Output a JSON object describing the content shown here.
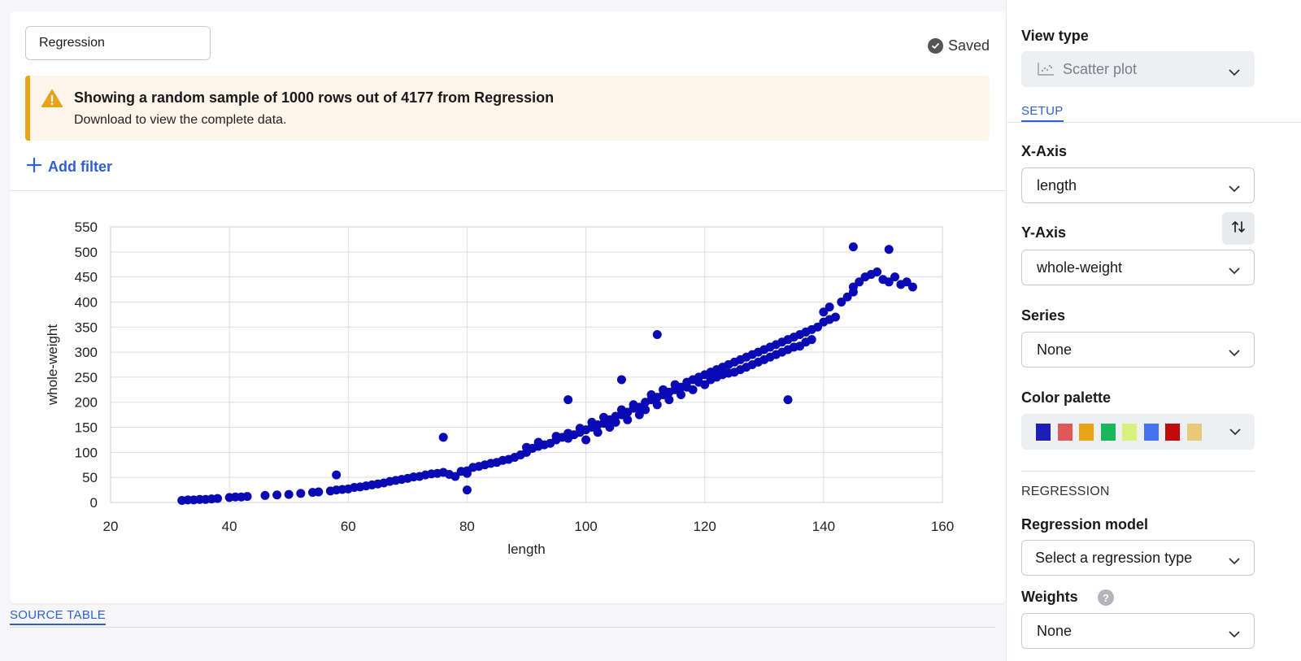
{
  "editor": {
    "name_value": "Regression",
    "saved_label": "Saved",
    "warning_title": "Showing a random sample of 1000 rows out of 4177 from Regression",
    "warning_sub": "Download to view the complete data.",
    "add_filter_label": "Add filter",
    "source_tab_label": "SOURCE TABLE"
  },
  "panel": {
    "view_type_label": "View type",
    "view_type_value": "Scatter plot",
    "setup_tab": "SETUP",
    "x_axis_label": "X-Axis",
    "x_axis_value": "length",
    "y_axis_label": "Y-Axis",
    "y_axis_value": "whole-weight",
    "series_label": "Series",
    "series_value": "None",
    "palette_label": "Color palette",
    "palette_colors": [
      "#1d1db8",
      "#e05757",
      "#e8a317",
      "#18b85a",
      "#d6f27a",
      "#4473f2",
      "#c00b0b",
      "#e8c97a"
    ],
    "regression_heading": "REGRESSION",
    "regression_model_label": "Regression model",
    "regression_model_value": "Select a regression type",
    "weights_label": "Weights",
    "weights_value": "None"
  },
  "chart_data": {
    "type": "scatter",
    "xlabel": "length",
    "ylabel": "whole-weight",
    "xlim": [
      20,
      160
    ],
    "ylim": [
      0,
      550
    ],
    "xticks": [
      "20",
      "40",
      "60",
      "80",
      "100",
      "120",
      "140",
      "160"
    ],
    "yticks": [
      "0",
      "50",
      "100",
      "150",
      "200",
      "250",
      "300",
      "350",
      "400",
      "450",
      "500",
      "550"
    ],
    "grid": true,
    "color": "#0a0ab4",
    "x": [
      32,
      33,
      34,
      35,
      36,
      37,
      38,
      40,
      41,
      42,
      43,
      46,
      48,
      50,
      52,
      54,
      55,
      57,
      58,
      59,
      60,
      61,
      62,
      63,
      64,
      65,
      66,
      67,
      68,
      69,
      70,
      71,
      72,
      73,
      74,
      75,
      76,
      77,
      78,
      79,
      80,
      80,
      81,
      82,
      83,
      84,
      85,
      86,
      87,
      88,
      89,
      90,
      90,
      91,
      92,
      92,
      93,
      94,
      95,
      95,
      96,
      97,
      97,
      98,
      99,
      99,
      100,
      100,
      101,
      101,
      102,
      102,
      103,
      103,
      104,
      104,
      105,
      105,
      106,
      106,
      107,
      107,
      108,
      108,
      109,
      109,
      110,
      110,
      111,
      111,
      112,
      112,
      113,
      113,
      114,
      114,
      115,
      115,
      116,
      116,
      117,
      117,
      118,
      118,
      119,
      119,
      120,
      120,
      121,
      121,
      122,
      122,
      123,
      123,
      124,
      124,
      125,
      125,
      126,
      126,
      127,
      127,
      128,
      128,
      129,
      129,
      130,
      130,
      131,
      131,
      132,
      132,
      133,
      133,
      134,
      134,
      135,
      135,
      136,
      136,
      137,
      137,
      138,
      138,
      139,
      140,
      140,
      141,
      141,
      142,
      143,
      144,
      145,
      145,
      146,
      147,
      148,
      149,
      150,
      151,
      152,
      153,
      154,
      155,
      97,
      58,
      76,
      106,
      112,
      134,
      80,
      145,
      151
    ],
    "y": [
      4,
      5,
      5,
      6,
      6,
      7,
      8,
      10,
      11,
      11,
      12,
      14,
      15,
      16,
      18,
      20,
      21,
      23,
      25,
      26,
      27,
      30,
      31,
      33,
      35,
      37,
      39,
      42,
      44,
      46,
      48,
      51,
      52,
      55,
      57,
      58,
      60,
      56,
      52,
      62,
      63,
      58,
      70,
      72,
      75,
      78,
      80,
      84,
      86,
      90,
      95,
      100,
      110,
      108,
      112,
      120,
      115,
      118,
      125,
      132,
      130,
      128,
      138,
      135,
      140,
      148,
      145,
      125,
      150,
      160,
      155,
      140,
      158,
      170,
      165,
      150,
      172,
      160,
      175,
      185,
      180,
      165,
      188,
      195,
      190,
      175,
      200,
      185,
      205,
      215,
      210,
      195,
      215,
      225,
      220,
      205,
      225,
      235,
      230,
      215,
      240,
      230,
      245,
      225,
      250,
      240,
      255,
      235,
      260,
      245,
      265,
      250,
      270,
      255,
      275,
      258,
      280,
      260,
      285,
      265,
      290,
      270,
      295,
      275,
      300,
      280,
      305,
      285,
      310,
      290,
      315,
      295,
      300,
      320,
      325,
      305,
      330,
      310,
      335,
      312,
      340,
      320,
      345,
      325,
      350,
      360,
      380,
      365,
      390,
      370,
      400,
      410,
      420,
      430,
      440,
      450,
      455,
      460,
      445,
      440,
      450,
      435,
      440,
      430,
      205,
      55,
      130,
      245,
      335,
      205,
      25,
      510,
      505
    ]
  }
}
